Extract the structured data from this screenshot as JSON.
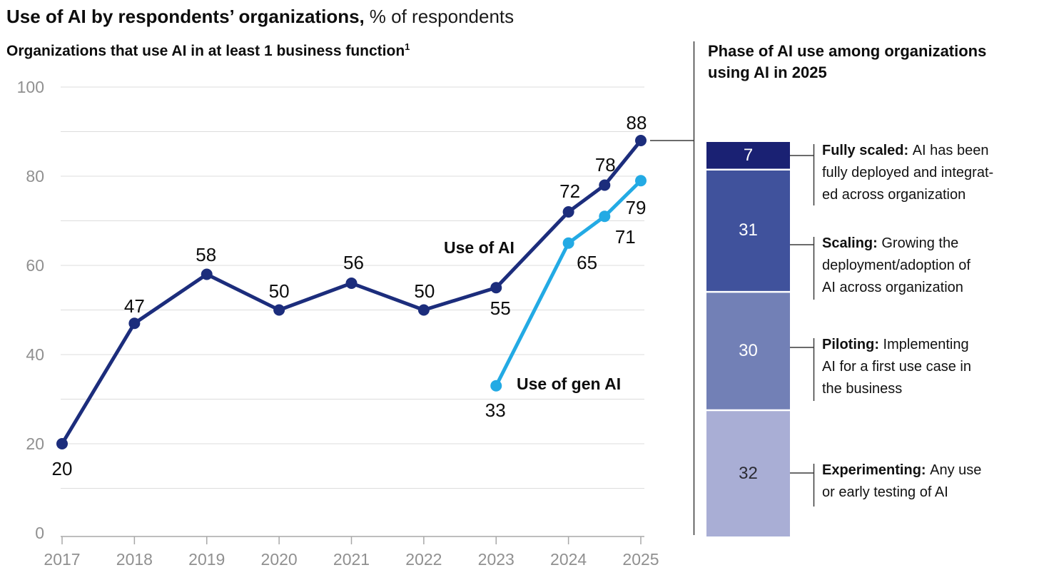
{
  "header": {
    "title_bold": "Use of AI by respondents’ organizations,",
    "title_regular": "% of respondents"
  },
  "style": {
    "navy": "#1c2d7c",
    "light_blue": "#23aae4",
    "gridline": "#dcdcdc",
    "axis_line": "#a8a8a8",
    "axis_text": "#909090",
    "connector": "#3a3a3a",
    "separator": "#ffffff"
  },
  "chart_data": [
    {
      "type": "line",
      "title": "Organizations that use AI in at least 1 business function",
      "title_footnote_marker": "1",
      "unit": "% of respondents",
      "xlim": [
        2017,
        2025
      ],
      "ylim": [
        0,
        100
      ],
      "ytick_labels": [
        0,
        20,
        40,
        60,
        80,
        100
      ],
      "gridlines_every": 10,
      "xticks": [
        2017,
        2018,
        2019,
        2020,
        2021,
        2022,
        2023,
        2024,
        2025
      ],
      "grid": "horizontal",
      "legend_position": "inline-labels",
      "series": [
        {
          "name": "Use of AI",
          "color": "#1c2d7c",
          "points": [
            [
              2017,
              20
            ],
            [
              2018,
              47
            ],
            [
              2019,
              58
            ],
            [
              2020,
              50
            ],
            [
              2021,
              56
            ],
            [
              2022,
              50
            ],
            [
              2023,
              55
            ],
            [
              2024,
              72
            ],
            [
              2024.5,
              78
            ],
            [
              2025,
              88
            ]
          ]
        },
        {
          "name": "Use of gen AI",
          "color": "#23aae4",
          "points": [
            [
              2023,
              33
            ],
            [
              2024,
              65
            ],
            [
              2024.5,
              71
            ],
            [
              2025,
              79
            ]
          ]
        }
      ]
    },
    {
      "type": "stacked-bar",
      "title": "Phase of AI use among organizations using AI in 2025",
      "total": 100,
      "segments": [
        {
          "value": 7,
          "label": "Fully scaled",
          "description_lines": [
            "AI has been",
            "fully deployed and integrat-",
            "ed across organization"
          ],
          "color": "#1a2173",
          "text_color": "#ffffff"
        },
        {
          "value": 31,
          "label": "Scaling",
          "description_lines": [
            "Growing the",
            "deployment/adoption of",
            "AI across organization"
          ],
          "color": "#40529c",
          "text_color": "#ffffff"
        },
        {
          "value": 30,
          "label": "Piloting",
          "description_lines": [
            "Implementing",
            "AI for a first use case in",
            "the business"
          ],
          "color": "#7280b6",
          "text_color": "#ffffff"
        },
        {
          "value": 32,
          "label": "Experimenting",
          "description_lines": [
            "Any use",
            "or early testing of AI"
          ],
          "color": "#a9aed5",
          "text_color": "#2b2b33"
        }
      ]
    }
  ]
}
